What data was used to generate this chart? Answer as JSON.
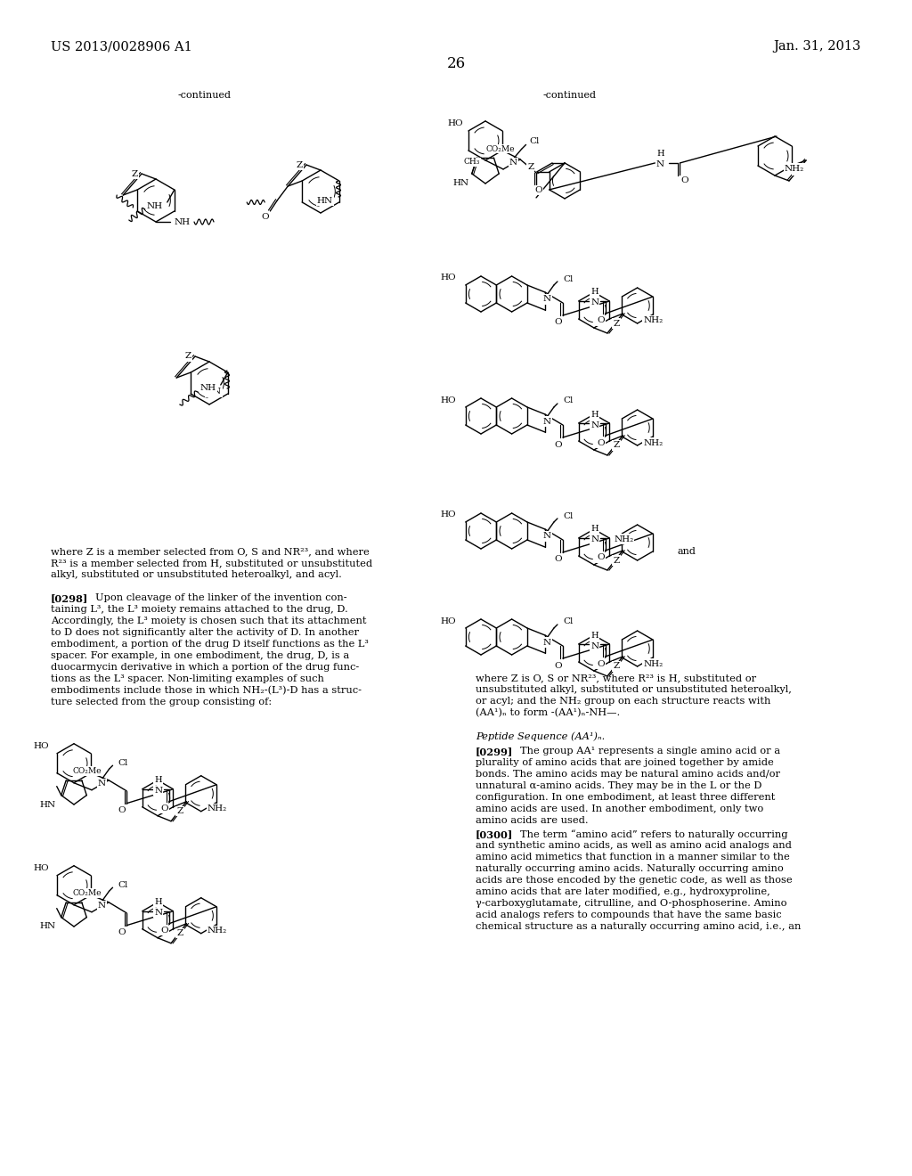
{
  "page_number": "26",
  "patent_number": "US 2013/0028906 A1",
  "patent_date": "Jan. 31, 2013",
  "background_color": "#ffffff",
  "text_color": "#000000",
  "left_continued": "-continued",
  "right_continued": "-continued",
  "body_text_left_1": "where Z is a member selected from O, S and NR",
  "body_text_left_1b": "23",
  "body_text_left_1c": ", and where",
  "body_text_left_2": "R",
  "body_text_left_2b": "23",
  "body_text_left_2c": " is a member selected from H, substituted or unsubstituted",
  "body_text_left_3": "alkyl, substituted or unsubstituted heteroalkyl, and acyl.",
  "para_0298_label": "[0298]",
  "para_0298_text": "Upon cleavage of the linker of the invention con-\ntaining L³, the L³ moiety remains attached to the drug, D.\nAccordingly, the L³ moiety is chosen such that its attachment\nto D does not significantly alter the activity of D. In another\nembodiment, a portion of the drug D itself functions as the L³\nspacer. For example, in one embodiment, the drug, D, is a\nduocarmycin derivative in which a portion of the drug func-\ntions as the L³ spacer. Non-limiting examples of such\nembodiments include those in which NH₂-(L³)-D has a struc-\nture selected from the group consisting of:",
  "right_text_1": "where Z is O, S or NR",
  "right_text_2": "23",
  "right_text_3": ", where R",
  "right_text_4": "23",
  "right_text_5": " is H, substituted or",
  "right_text_6": "unsubstituted alkyl, substituted or unsubstituted heteroalkyl,",
  "right_text_7": "or acyl; and the NH₂ group on each structure reacts with",
  "right_text_8": "(AA¹)ₙ to form -(AA¹)ₙ-NH—.",
  "peptide_heading": "Peptide Sequence (AA¹)ₙ.",
  "para_0299_label": "[0299]",
  "para_0299_text": "The group AA¹ represents a single amino acid or a\nplurality of amino acids that are joined together by amide\nbonds. The amino acids may be natural amino acids and/or\nunnatural α-amino acids. They may be in the L or the D\nconfiguration. In one embodiment, at least three different\namino acids are used. In another embodiment, only two\namino acids are used.",
  "para_0300_label": "[0300]",
  "para_0300_text": "The term “amino acid” refers to naturally occurring\nand synthetic amino acids, as well as amino acid analogs and\namino acid mimetics that function in a manner similar to the\nnaturally occurring amino acids. Naturally occurring amino\nacids are those encoded by the genetic code, as well as those\namino acids that are later modified, e.g., hydroxyproline,\nγ-carboxyglutamate, citrulline, and O-phosphoserine. Amino\nacid analogs refers to compounds that have the same basic\nchemical structure as a naturally occurring amino acid, i.e., an"
}
